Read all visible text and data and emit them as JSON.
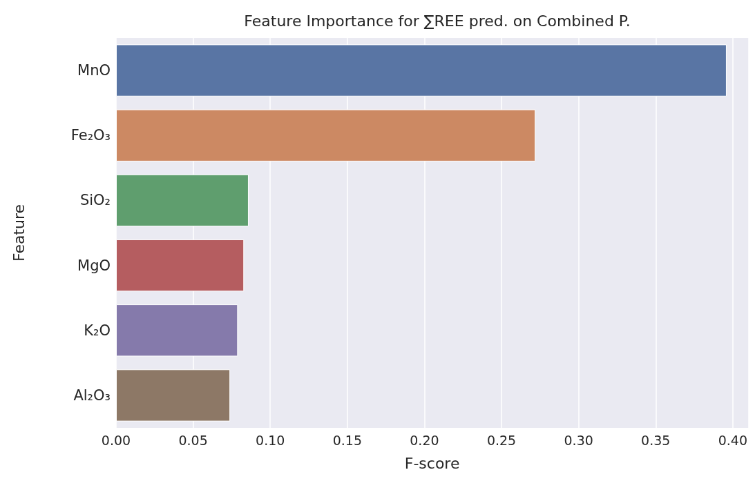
{
  "chart_data": {
    "type": "bar",
    "orientation": "horizontal",
    "title": "Feature Importance for ∑REE pred. on Combined P.",
    "xlabel": "F-score",
    "ylabel": "Feature",
    "categories": [
      "MnO",
      "Fe₂O₃",
      "SiO₂",
      "MgO",
      "K₂O",
      "Al₂O₃"
    ],
    "values": [
      0.396,
      0.272,
      0.086,
      0.083,
      0.079,
      0.074
    ],
    "colors": [
      "#5975a4",
      "#cc8963",
      "#5f9e6e",
      "#b55d60",
      "#857aab",
      "#8d7866"
    ],
    "xlim": [
      0,
      0.41
    ],
    "xticks": [
      {
        "value": 0,
        "label": "0.00"
      },
      0.05,
      {
        "value": 0.1,
        "label": "0.10"
      },
      0.15,
      {
        "value": 0.2,
        "label": "0.20"
      },
      0.25,
      {
        "value": 0.3,
        "label": "0.30"
      },
      0.35,
      {
        "value": 0.4,
        "label": "0.40"
      }
    ],
    "grid": "x"
  }
}
